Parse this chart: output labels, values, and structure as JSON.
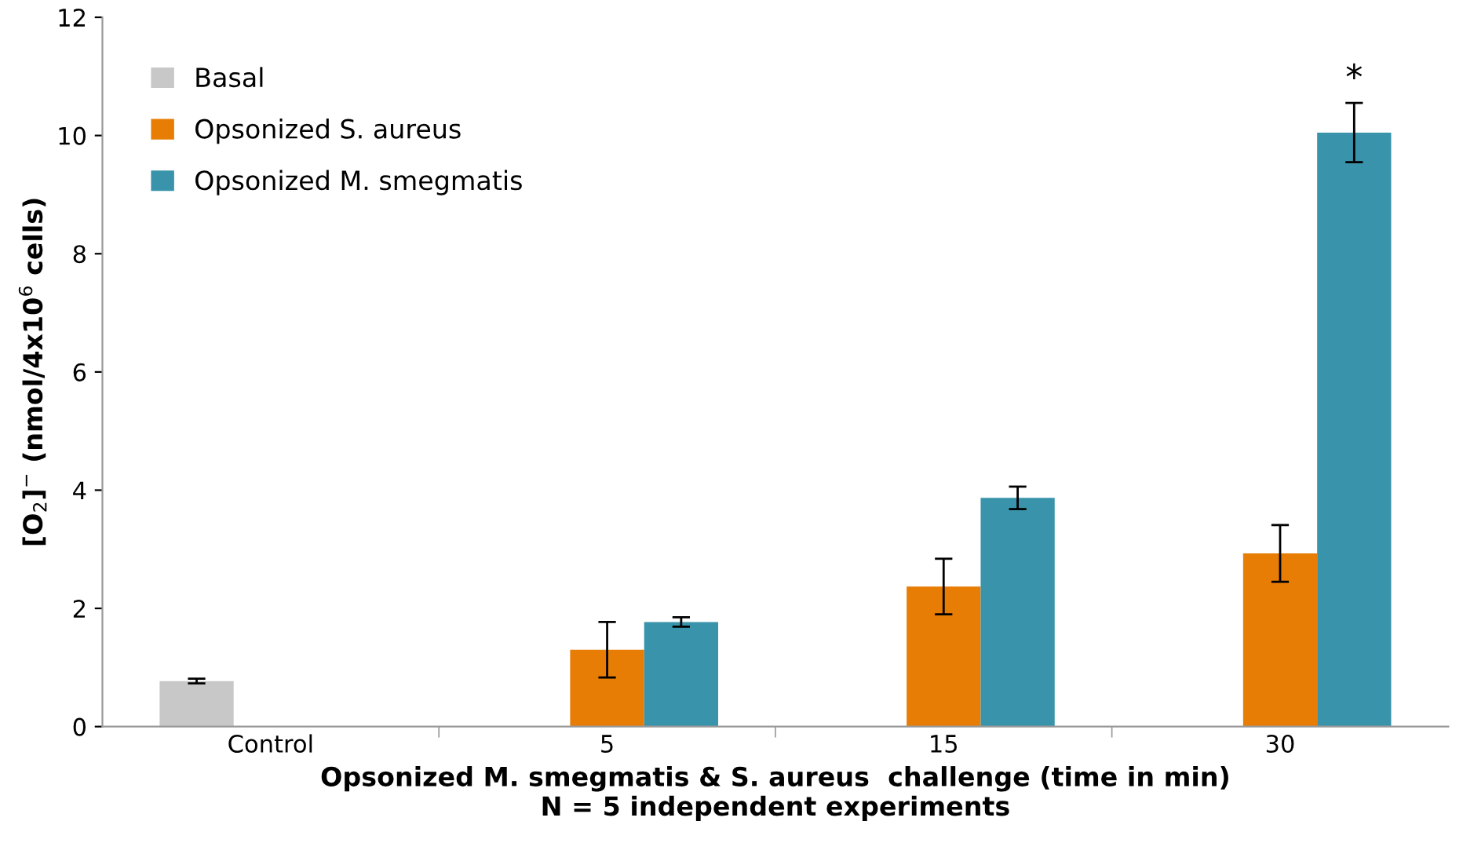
{
  "chart_data": {
    "type": "bar",
    "xlabel": "Opsonized M. smegmatis & S. aureus  challenge (time in min)\nN = 5 independent experiments",
    "ylabel": "[O$_{2}$]$^{−}$ (nmol/4x10$^{6}$ cells)",
    "categories": [
      "Control",
      "5",
      "15",
      "30"
    ],
    "series": [
      {
        "name": "Basal",
        "color": "#c8c8c8",
        "values": [
          0.77,
          null,
          null,
          null
        ],
        "errors": [
          0.04,
          null,
          null,
          null
        ]
      },
      {
        "name": "Opsonized S. aureus",
        "color": "#e87d05",
        "values": [
          null,
          1.3,
          2.37,
          2.93
        ],
        "errors": [
          null,
          0.47,
          0.47,
          0.48
        ]
      },
      {
        "name": "Opsonized M. smegmatis",
        "color": "#3994ab",
        "values": [
          null,
          1.77,
          3.87,
          10.05
        ],
        "errors": [
          null,
          0.08,
          0.19,
          0.5
        ]
      }
    ],
    "ylim": [
      0,
      12
    ],
    "yticks": [
      0,
      2,
      4,
      6,
      8,
      10,
      12
    ],
    "annotations": [
      "*"
    ],
    "grid": false,
    "legend": "top left"
  }
}
